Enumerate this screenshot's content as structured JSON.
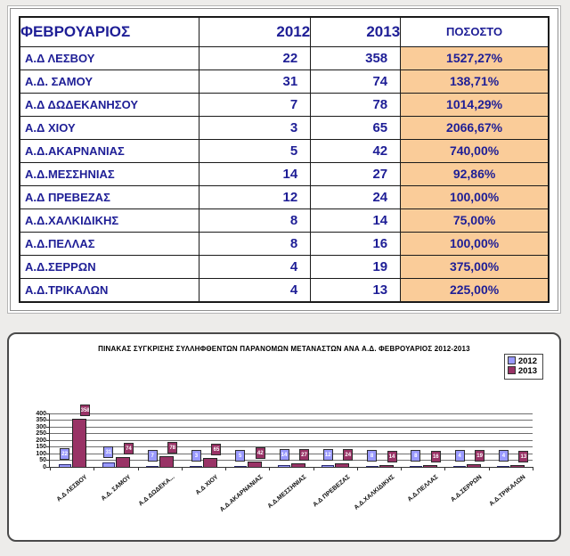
{
  "table": {
    "header": {
      "month": "ΦΕΒΡΟΥΑΡΙΟΣ",
      "col_2012": "2012",
      "col_2013": "2013",
      "pct": "ΠΟΣΟΣΤΟ"
    },
    "rows": [
      {
        "name": "Α.Δ ΛΕΣΒΟΥ",
        "v2012": "22",
        "v2013": "358",
        "pct": "1527,27%"
      },
      {
        "name": "Α.Δ. ΣΑΜΟΥ",
        "v2012": "31",
        "v2013": "74",
        "pct": "138,71%"
      },
      {
        "name": "Α.Δ ΔΩΔΕΚΑΝΗΣΟΥ",
        "v2012": "7",
        "v2013": "78",
        "pct": "1014,29%"
      },
      {
        "name": "Α.Δ ΧΙΟΥ",
        "v2012": "3",
        "v2013": "65",
        "pct": "2066,67%"
      },
      {
        "name": "Α.Δ.ΑΚΑΡΝΑΝΙΑΣ",
        "v2012": "5",
        "v2013": "42",
        "pct": "740,00%"
      },
      {
        "name": "Α.Δ.ΜΕΣΣΗΝΙΑΣ",
        "v2012": "14",
        "v2013": "27",
        "pct": "92,86%"
      },
      {
        "name": "Α.Δ ΠΡΕΒΕΖΑΣ",
        "v2012": "12",
        "v2013": "24",
        "pct": "100,00%"
      },
      {
        "name": "Α.Δ.ΧΑΛΚΙΔΙΚΗΣ",
        "v2012": "8",
        "v2013": "14",
        "pct": "75,00%"
      },
      {
        "name": "Α.Δ.ΠΕΛΛΑΣ",
        "v2012": "8",
        "v2013": "16",
        "pct": "100,00%"
      },
      {
        "name": "Α.Δ.ΣΕΡΡΩΝ",
        "v2012": "4",
        "v2013": "19",
        "pct": "375,00%"
      },
      {
        "name": "Α.Δ.ΤΡΙΚΑΛΩΝ",
        "v2012": "4",
        "v2013": "13",
        "pct": "225,00%"
      }
    ]
  },
  "chart_data": {
    "type": "bar",
    "title": "ΠΙΝΑΚΑΣ ΣΥΓΚΡΙΣΗΣ ΣΥΛΛΗΦΘΕΝΤΩΝ ΠΑΡΑΝΟΜΩΝ ΜΕΤΑΝΑΣΤΩΝ ΑΝΑ Α.Δ. ΦΕΒΡΟΥΑΡΙΟΣ  2012-2013",
    "categories": [
      "Α.Δ ΛΕΣΒΟΥ",
      "Α.Δ. ΣΑΜΟΥ",
      "Α.Δ ΔΩΔΕΚΑ...",
      "Α.Δ ΧΙΟΥ",
      "Α.Δ.ΑΚΑΡΝΑΝΙΑΣ",
      "Α.Δ.ΜΕΣΣΗΝΙΑΣ",
      "Α.Δ ΠΡΕΒΕΖΑΣ",
      "Α.Δ.ΧΑΛΚΙΔΙΚΗΣ",
      "Α.Δ.ΠΕΛΛΑΣ",
      "Α.Δ.ΣΕΡΡΩΝ",
      "Α.Δ.ΤΡΙΚΑΛΩΝ"
    ],
    "series": [
      {
        "name": "2012",
        "color": "#9999FF",
        "border": "#26266b",
        "values": [
          22,
          31,
          7,
          3,
          5,
          14,
          12,
          8,
          8,
          4,
          4
        ]
      },
      {
        "name": "2013",
        "color": "#993366",
        "border": "#222222",
        "values": [
          358,
          74,
          78,
          65,
          42,
          27,
          24,
          14,
          16,
          19,
          13
        ]
      }
    ],
    "ylim": [
      0,
      400
    ],
    "yticks": [
      0,
      50,
      100,
      150,
      200,
      250,
      300,
      350,
      400
    ],
    "grid": true,
    "legend_position": "top-right",
    "data_labels": true
  },
  "colors": {
    "table_text": "#1e1e96",
    "pct_cell_bg": "#FACC99",
    "series_2012": "#9999FF",
    "series_2013": "#993366",
    "page_bg": "#edecea"
  }
}
